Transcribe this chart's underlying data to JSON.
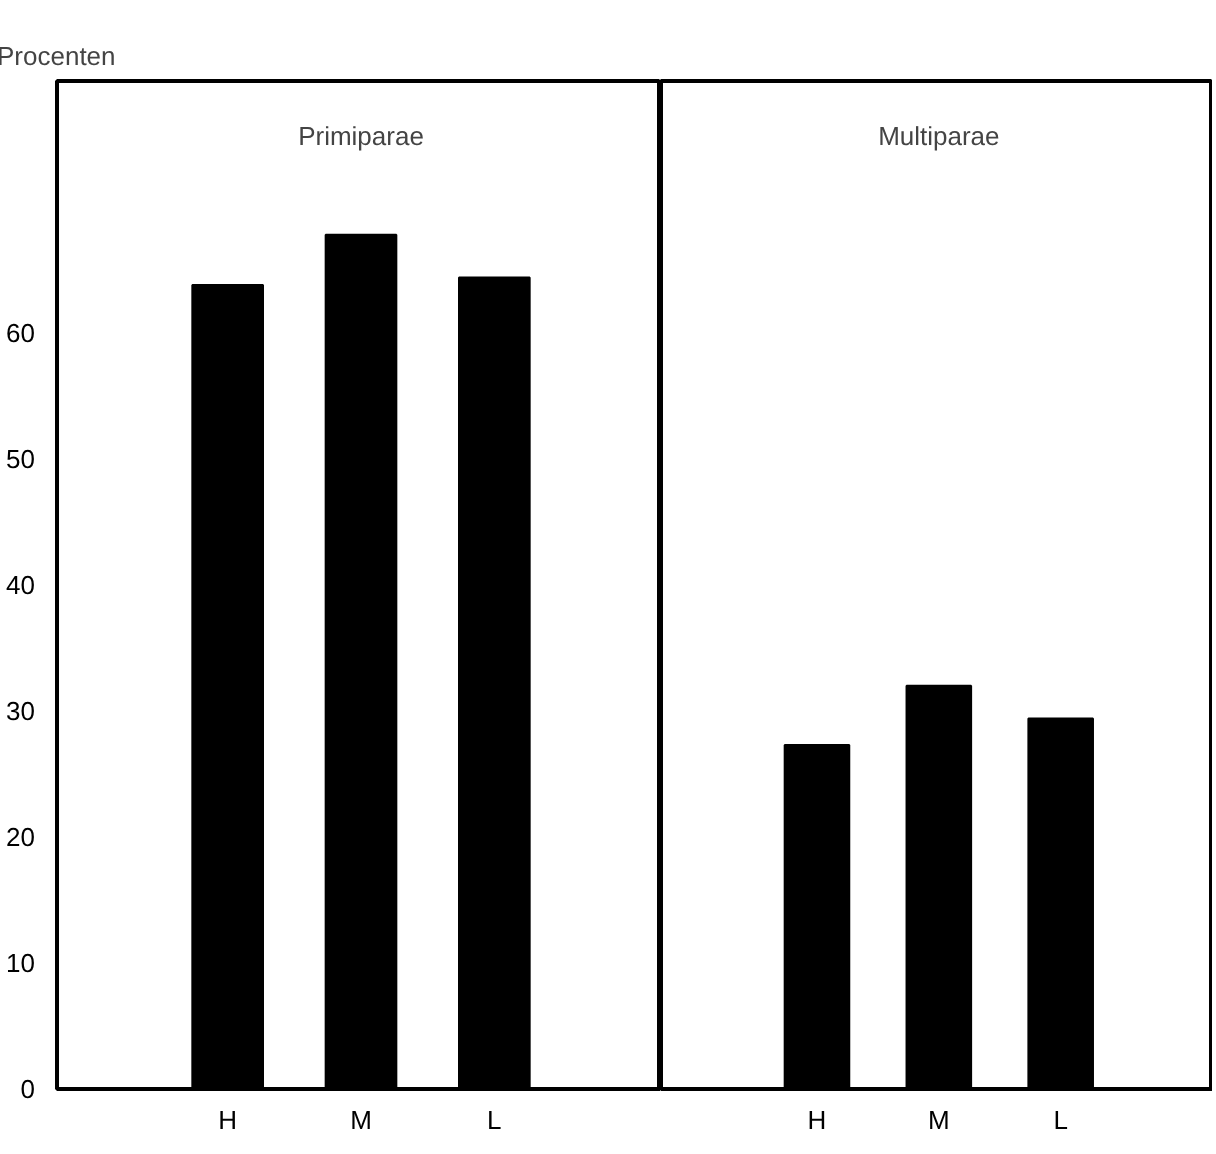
{
  "chart_data": [
    {
      "type": "bar",
      "title": "Primiparae",
      "ylabel": "Procenten",
      "categories": [
        "H",
        "M",
        "L"
      ],
      "values": [
        63.8,
        67.8,
        64.4
      ],
      "color": "#000000",
      "ylim": [
        0,
        80
      ],
      "yticks": [
        0,
        10,
        20,
        30,
        40,
        50,
        60
      ],
      "grid": false
    },
    {
      "type": "bar",
      "title": "Multiparae",
      "categories": [
        "H",
        "M",
        "L"
      ],
      "values": [
        27.3,
        32.0,
        29.4
      ],
      "color": "#000000",
      "ylim": [
        0,
        80
      ],
      "yticks": [
        0,
        10,
        20,
        30,
        40,
        50,
        60
      ],
      "grid": false,
      "tick_labels": "x"
    }
  ]
}
